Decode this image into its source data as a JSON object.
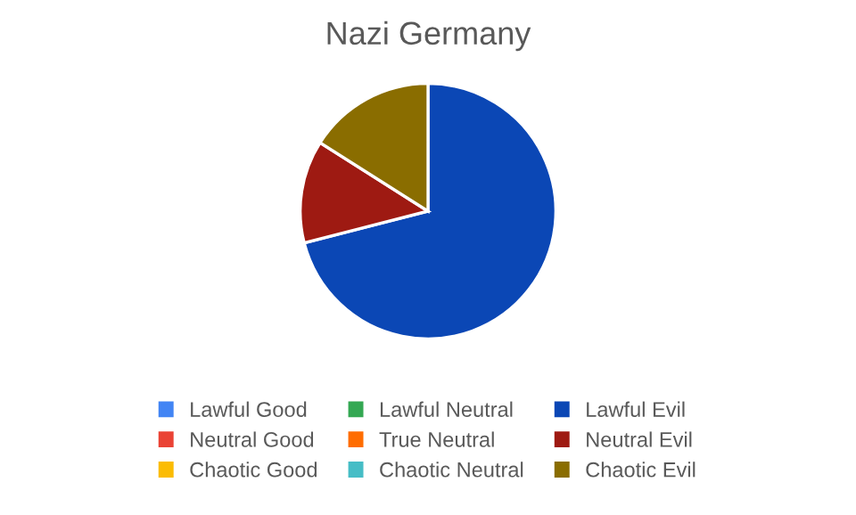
{
  "chart_data": {
    "type": "pie",
    "title": "Nazi Germany",
    "categories": [
      "Lawful Good",
      "Neutral Good",
      "Chaotic Good",
      "Lawful Neutral",
      "True Neutral",
      "Chaotic Neutral",
      "Lawful Evil",
      "Neutral Evil",
      "Chaotic Evil"
    ],
    "values": [
      0,
      0,
      0,
      0,
      0,
      0,
      71,
      13,
      16
    ],
    "colors": [
      "#4285f4",
      "#ea4335",
      "#fbbc04",
      "#34a853",
      "#ff6d01",
      "#46bdc6",
      "#0b47b5",
      "#9e1a12",
      "#8a6d00"
    ],
    "legend": "bottom"
  }
}
